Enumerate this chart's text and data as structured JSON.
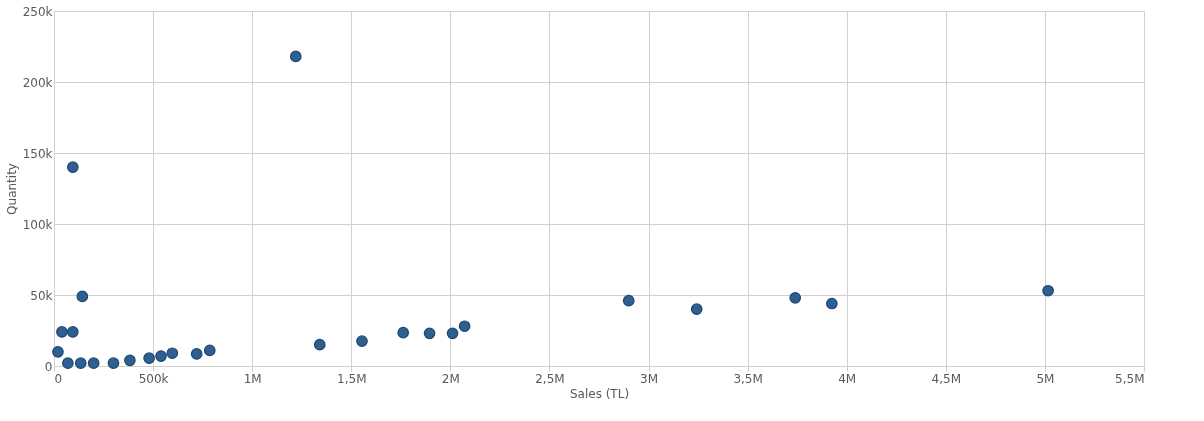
{
  "chart_data": {
    "type": "scatter",
    "xlabel": "Sales (TL)",
    "ylabel": "Quantity",
    "x": [
      1220000,
      95000,
      143000,
      40000,
      95000,
      20000,
      70000,
      135000,
      200000,
      300000,
      383000,
      480000,
      540000,
      597000,
      720000,
      786000,
      1341000,
      1554000,
      1762000,
      1895000,
      2011000,
      2072000,
      2900000,
      3243000,
      3740000,
      3925000,
      5016000
    ],
    "series": [
      {
        "color": "#2d5f91",
        "values": [
          218000,
          140000,
          49000,
          24000,
          24000,
          10000,
          2000,
          2000,
          2000,
          2000,
          4000,
          5500,
          7000,
          9000,
          8500,
          11000,
          15000,
          17500,
          23500,
          23000,
          23000,
          28000,
          46000,
          40000,
          48000,
          44000,
          53000
        ]
      }
    ],
    "xlim": [
      0,
      5500000
    ],
    "ylim": [
      0,
      250000
    ],
    "xticks": [
      0,
      {
        "value": 500000,
        "label": "500k"
      },
      {
        "value": 1000000,
        "label": "1M"
      },
      {
        "value": 1500000,
        "label": "1,5M"
      },
      {
        "value": 2000000,
        "label": "2M"
      },
      {
        "value": 2500000,
        "label": "2,5M"
      },
      {
        "value": 3000000,
        "label": "3M"
      },
      {
        "value": 3500000,
        "label": "3,5M"
      },
      {
        "value": 4000000,
        "label": "4M"
      },
      {
        "value": 4500000,
        "label": "4,5M"
      },
      {
        "value": 5000000,
        "label": "5M"
      },
      {
        "value": 5500000,
        "label": "5,5M"
      }
    ],
    "yticks": [
      0,
      {
        "value": 50000,
        "label": "50k"
      },
      {
        "value": 100000,
        "label": "100k"
      },
      {
        "value": 150000,
        "label": "150k"
      },
      {
        "value": 200000,
        "label": "200k"
      },
      {
        "value": 250000,
        "label": "250k"
      }
    ],
    "grid": true
  }
}
